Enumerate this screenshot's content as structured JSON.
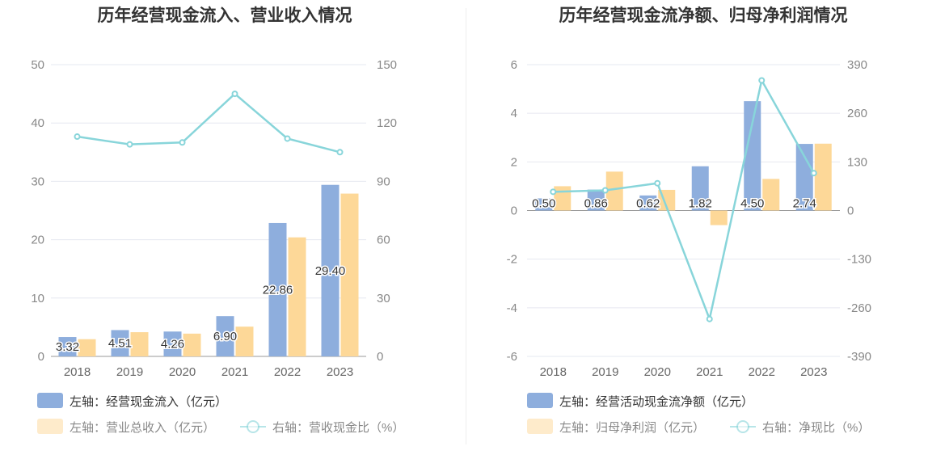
{
  "colors": {
    "bar1": "#8eaedd",
    "bar2": "#fdd898",
    "line": "#88d5da",
    "grid": "#e6e8f0"
  },
  "chart_data": [
    {
      "type": "bar",
      "title": "历年经营现金流入、营业收入情况",
      "categories": [
        "2018",
        "2019",
        "2020",
        "2021",
        "2022",
        "2023"
      ],
      "y_left": {
        "min": 0,
        "max": 50,
        "ticks": [
          "0",
          "10",
          "20",
          "30",
          "40",
          "50"
        ]
      },
      "y_right": {
        "min": 0,
        "max": 150,
        "ticks": [
          "0",
          "30",
          "60",
          "90",
          "120",
          "150"
        ]
      },
      "grid": true,
      "legend_position": "bottom",
      "series": [
        {
          "name": "左轴：经营现金流入（亿元）",
          "axis": "left",
          "type": "bar",
          "color": "#8eaedd",
          "values": [
            3.32,
            4.51,
            4.26,
            6.9,
            22.86,
            29.4
          ],
          "labels": [
            "3.32",
            "4.51",
            "4.26",
            "6.90",
            "22.86",
            "29.40"
          ]
        },
        {
          "name": "左轴：营业总收入（亿元）",
          "axis": "left",
          "type": "bar",
          "color": "#fdd898",
          "values": [
            2.95,
            4.15,
            3.9,
            5.1,
            20.4,
            27.9
          ]
        },
        {
          "name": "右轴：营收现金比（%）",
          "axis": "right",
          "type": "line",
          "color": "#88d5da",
          "values": [
            113,
            109,
            110,
            135,
            112,
            105
          ]
        }
      ]
    },
    {
      "type": "bar",
      "title": "历年经营现金流净额、归母净利润情况",
      "categories": [
        "2018",
        "2019",
        "2020",
        "2021",
        "2022",
        "2023"
      ],
      "y_left": {
        "min": -6,
        "max": 6,
        "ticks": [
          "-6",
          "-4",
          "-2",
          "0",
          "2",
          "4",
          "6"
        ]
      },
      "y_right": {
        "min": -390,
        "max": 390,
        "ticks": [
          "-390",
          "-260",
          "-130",
          "0",
          "130",
          "260",
          "390"
        ]
      },
      "grid": true,
      "legend_position": "bottom",
      "series": [
        {
          "name": "左轴：经营活动现金流净额（亿元）",
          "axis": "left",
          "type": "bar",
          "color": "#8eaedd",
          "values": [
            0.5,
            0.86,
            0.62,
            1.82,
            4.5,
            2.74
          ],
          "labels": [
            "0.50",
            "0.86",
            "0.62",
            "1.82",
            "4.50",
            "2.74"
          ]
        },
        {
          "name": "左轴：归母净利润（亿元）",
          "axis": "left",
          "type": "bar",
          "color": "#fdd898",
          "values": [
            1.0,
            1.6,
            0.85,
            -0.6,
            1.3,
            2.75
          ]
        },
        {
          "name": "右轴：净现比（%）",
          "axis": "right",
          "type": "line",
          "color": "#88d5da",
          "values": [
            50,
            54,
            73,
            -290,
            348,
            100
          ]
        }
      ]
    }
  ]
}
